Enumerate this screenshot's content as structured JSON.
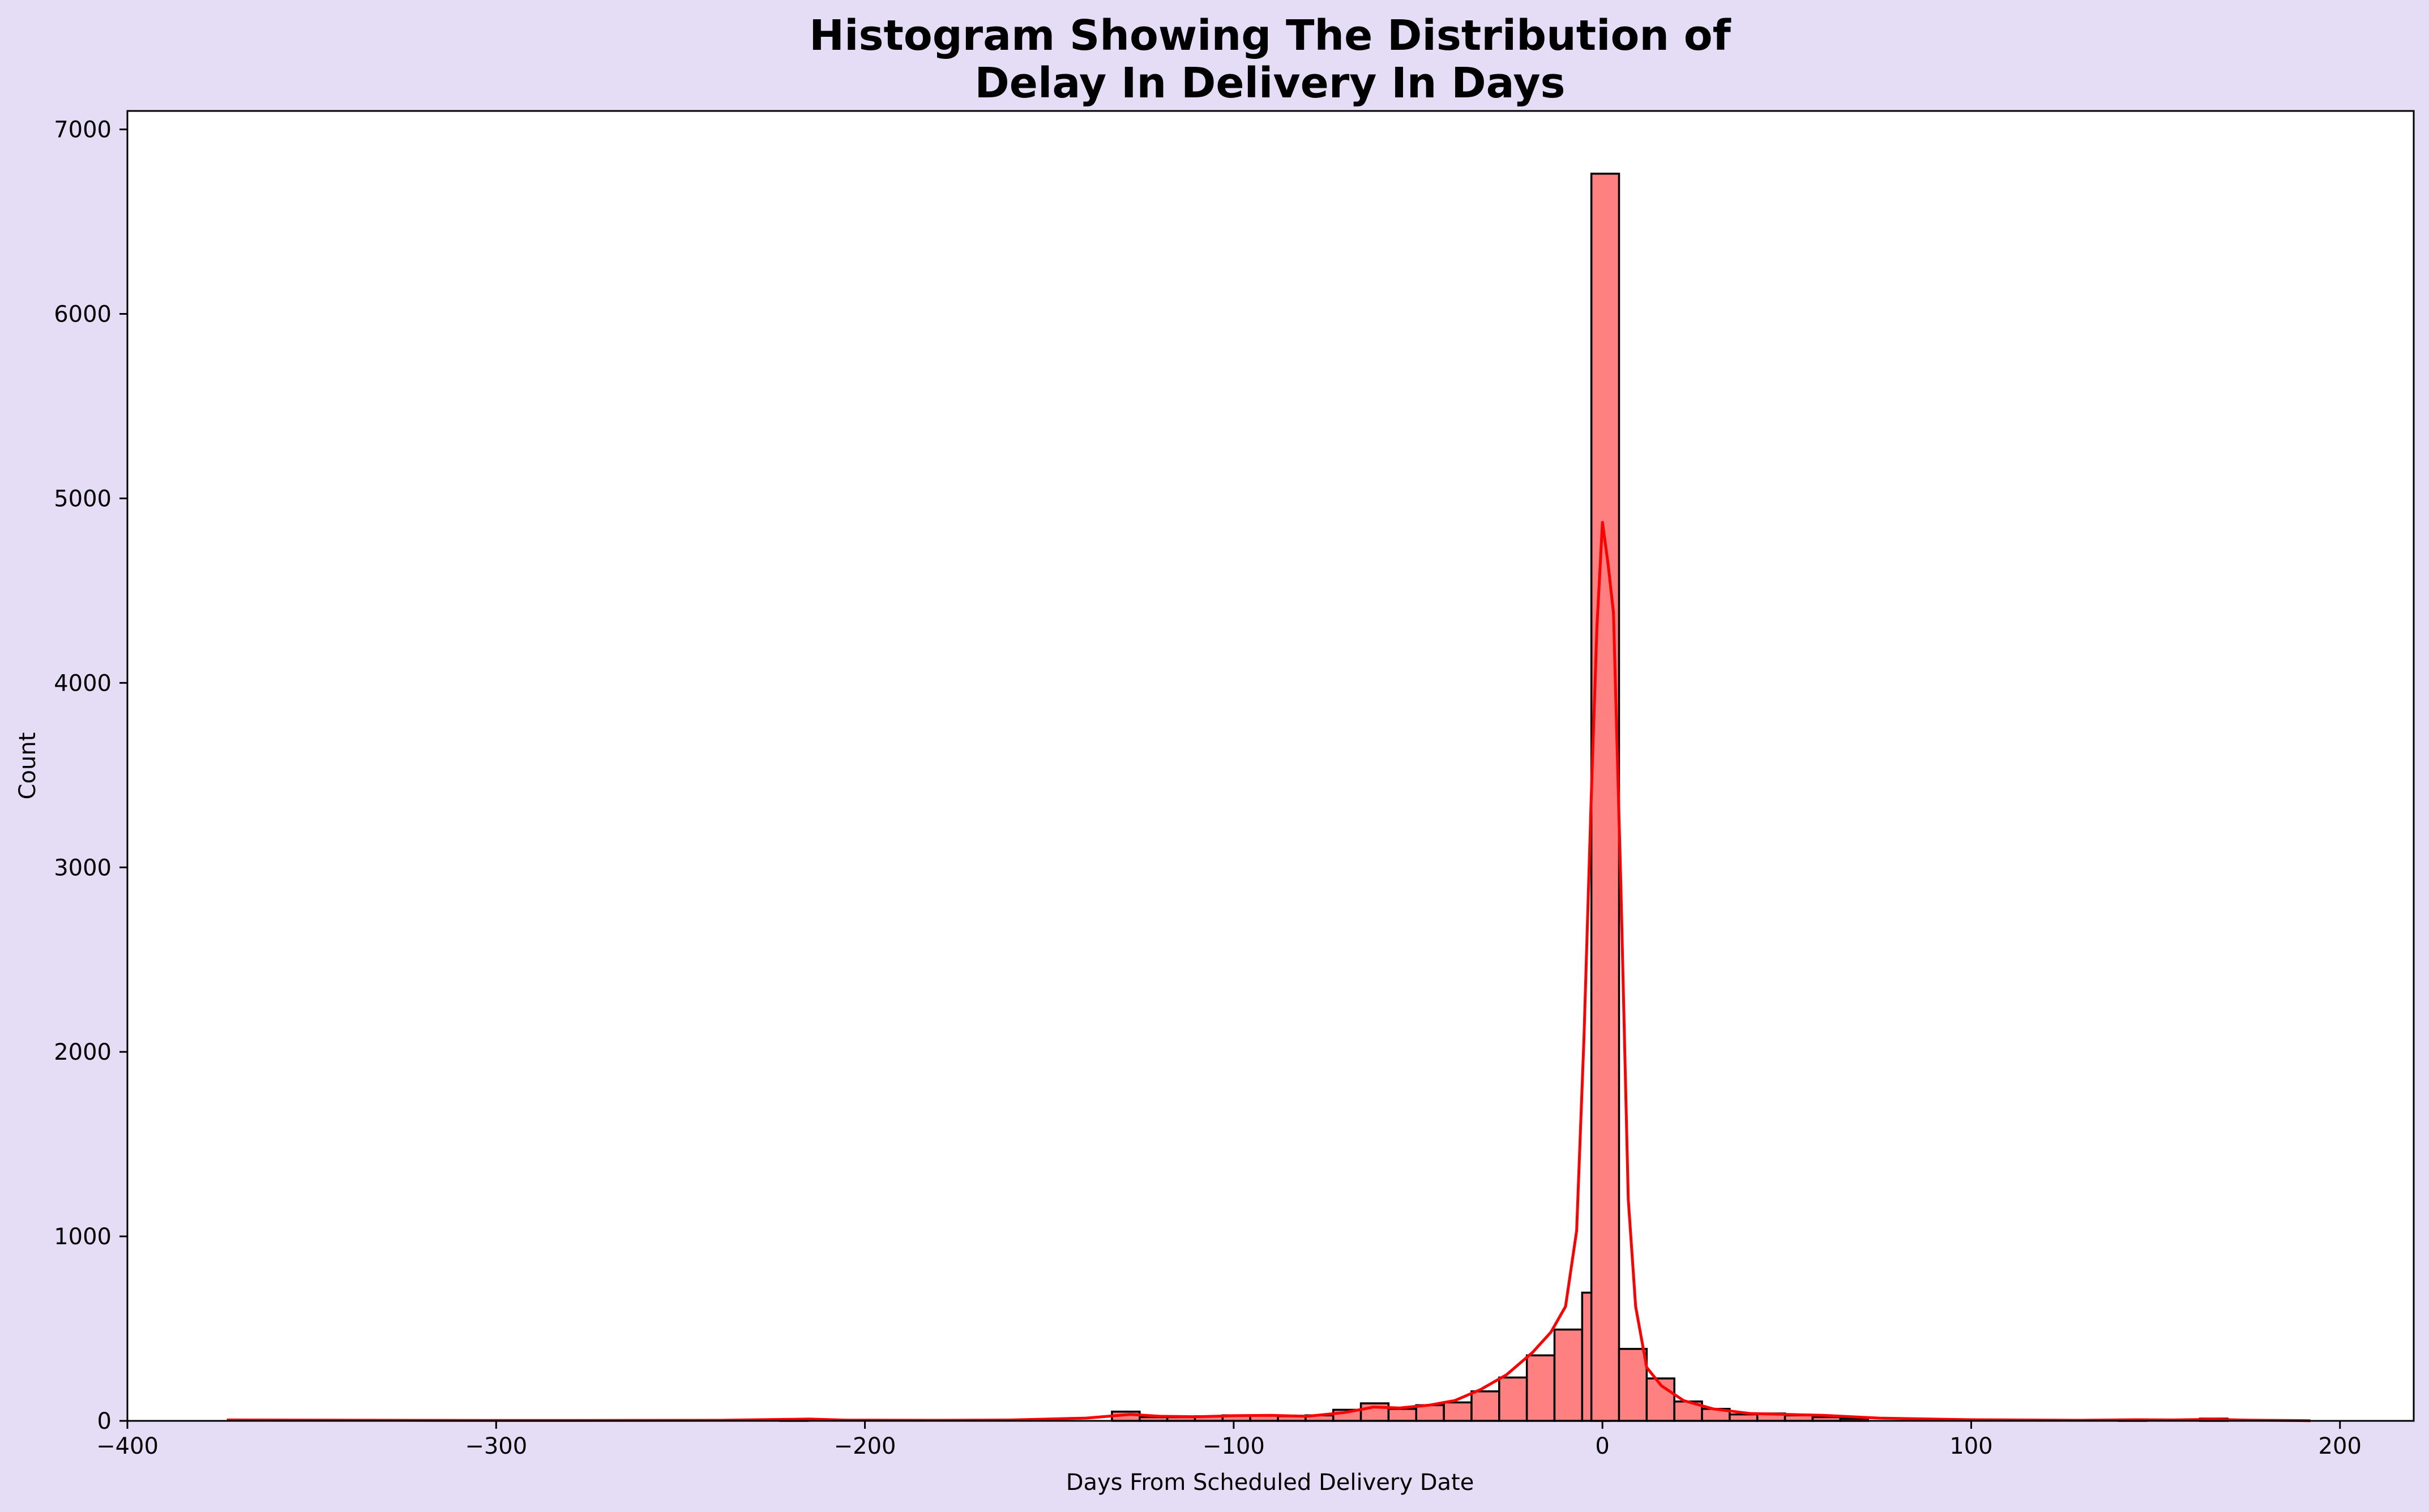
{
  "chart_data": {
    "type": "bar",
    "title_lines": [
      "Histogram Showing The Distribution of",
      "Delay In Delivery In Days"
    ],
    "xlabel": "Days From Scheduled Delivery Date",
    "ylabel": "Count",
    "xlim": [
      -400,
      220
    ],
    "ylim": [
      0,
      7100
    ],
    "xticks": [
      -400,
      -300,
      -200,
      -100,
      0,
      100,
      200
    ],
    "xtick_labels": [
      "−400",
      "−300",
      "−200",
      "−100",
      "0",
      "100",
      "200"
    ],
    "yticks": [
      0,
      1000,
      2000,
      3000,
      4000,
      5000,
      6000,
      7000
    ],
    "ytick_labels": [
      "0",
      "1000",
      "2000",
      "3000",
      "4000",
      "5000",
      "6000",
      "7000"
    ],
    "bin_width": 7.5,
    "bins": [
      {
        "x0": -373,
        "count": 0
      },
      {
        "x0": -223,
        "count": 8
      },
      {
        "x0": -133,
        "count": 50
      },
      {
        "x0": -125.5,
        "count": 20
      },
      {
        "x0": -118,
        "count": 20
      },
      {
        "x0": -110.5,
        "count": 25
      },
      {
        "x0": -103,
        "count": 30
      },
      {
        "x0": -95.5,
        "count": 30
      },
      {
        "x0": -88,
        "count": 25
      },
      {
        "x0": -80.5,
        "count": 30
      },
      {
        "x0": -73,
        "count": 60
      },
      {
        "x0": -65.5,
        "count": 95
      },
      {
        "x0": -58,
        "count": 65
      },
      {
        "x0": -50.5,
        "count": 85
      },
      {
        "x0": -43,
        "count": 100
      },
      {
        "x0": -35.5,
        "count": 160
      },
      {
        "x0": -28,
        "count": 235
      },
      {
        "x0": -20.5,
        "count": 355
      },
      {
        "x0": -13,
        "count": 495
      },
      {
        "x0": -5.5,
        "count": 695
      },
      {
        "x0": -3,
        "count": 6760
      },
      {
        "x0": 4.5,
        "count": 390
      },
      {
        "x0": 12,
        "count": 230
      },
      {
        "x0": 19.5,
        "count": 105
      },
      {
        "x0": 27,
        "count": 65
      },
      {
        "x0": 34.5,
        "count": 35
      },
      {
        "x0": 42,
        "count": 40
      },
      {
        "x0": 49.5,
        "count": 30
      },
      {
        "x0": 57,
        "count": 20
      },
      {
        "x0": 64.5,
        "count": 12
      },
      {
        "x0": 140,
        "count": 5
      },
      {
        "x0": 162,
        "count": 12
      }
    ],
    "kde": {
      "x": [
        -373,
        -300,
        -240,
        -222,
        -215,
        -205,
        -180,
        -160,
        -140,
        -128,
        -120,
        -110,
        -100,
        -90,
        -80,
        -70,
        -62,
        -55,
        -47,
        -40,
        -33,
        -26,
        -19,
        -14,
        -10,
        -7,
        -5,
        -3,
        -1.5,
        0,
        1.5,
        3,
        5,
        7,
        9,
        12,
        16,
        22,
        30,
        40,
        50,
        60,
        75,
        100,
        130,
        145,
        155,
        165,
        175,
        192
      ],
      "y": [
        5,
        2,
        3,
        8,
        10,
        4,
        3,
        5,
        15,
        35,
        25,
        22,
        28,
        30,
        25,
        45,
        75,
        70,
        85,
        110,
        170,
        250,
        370,
        480,
        620,
        1030,
        2080,
        3400,
        4300,
        4870,
        4650,
        4380,
        2900,
        1200,
        620,
        290,
        190,
        110,
        65,
        40,
        35,
        30,
        15,
        6,
        3,
        6,
        5,
        8,
        4,
        1
      ]
    },
    "bar_fill": "#ff8080",
    "bar_edge": "#000000",
    "kde_color": "#ff0000",
    "figure_background": "#e5dcf5",
    "plot_background": "#ffffff",
    "grid": false,
    "legend": "none"
  }
}
